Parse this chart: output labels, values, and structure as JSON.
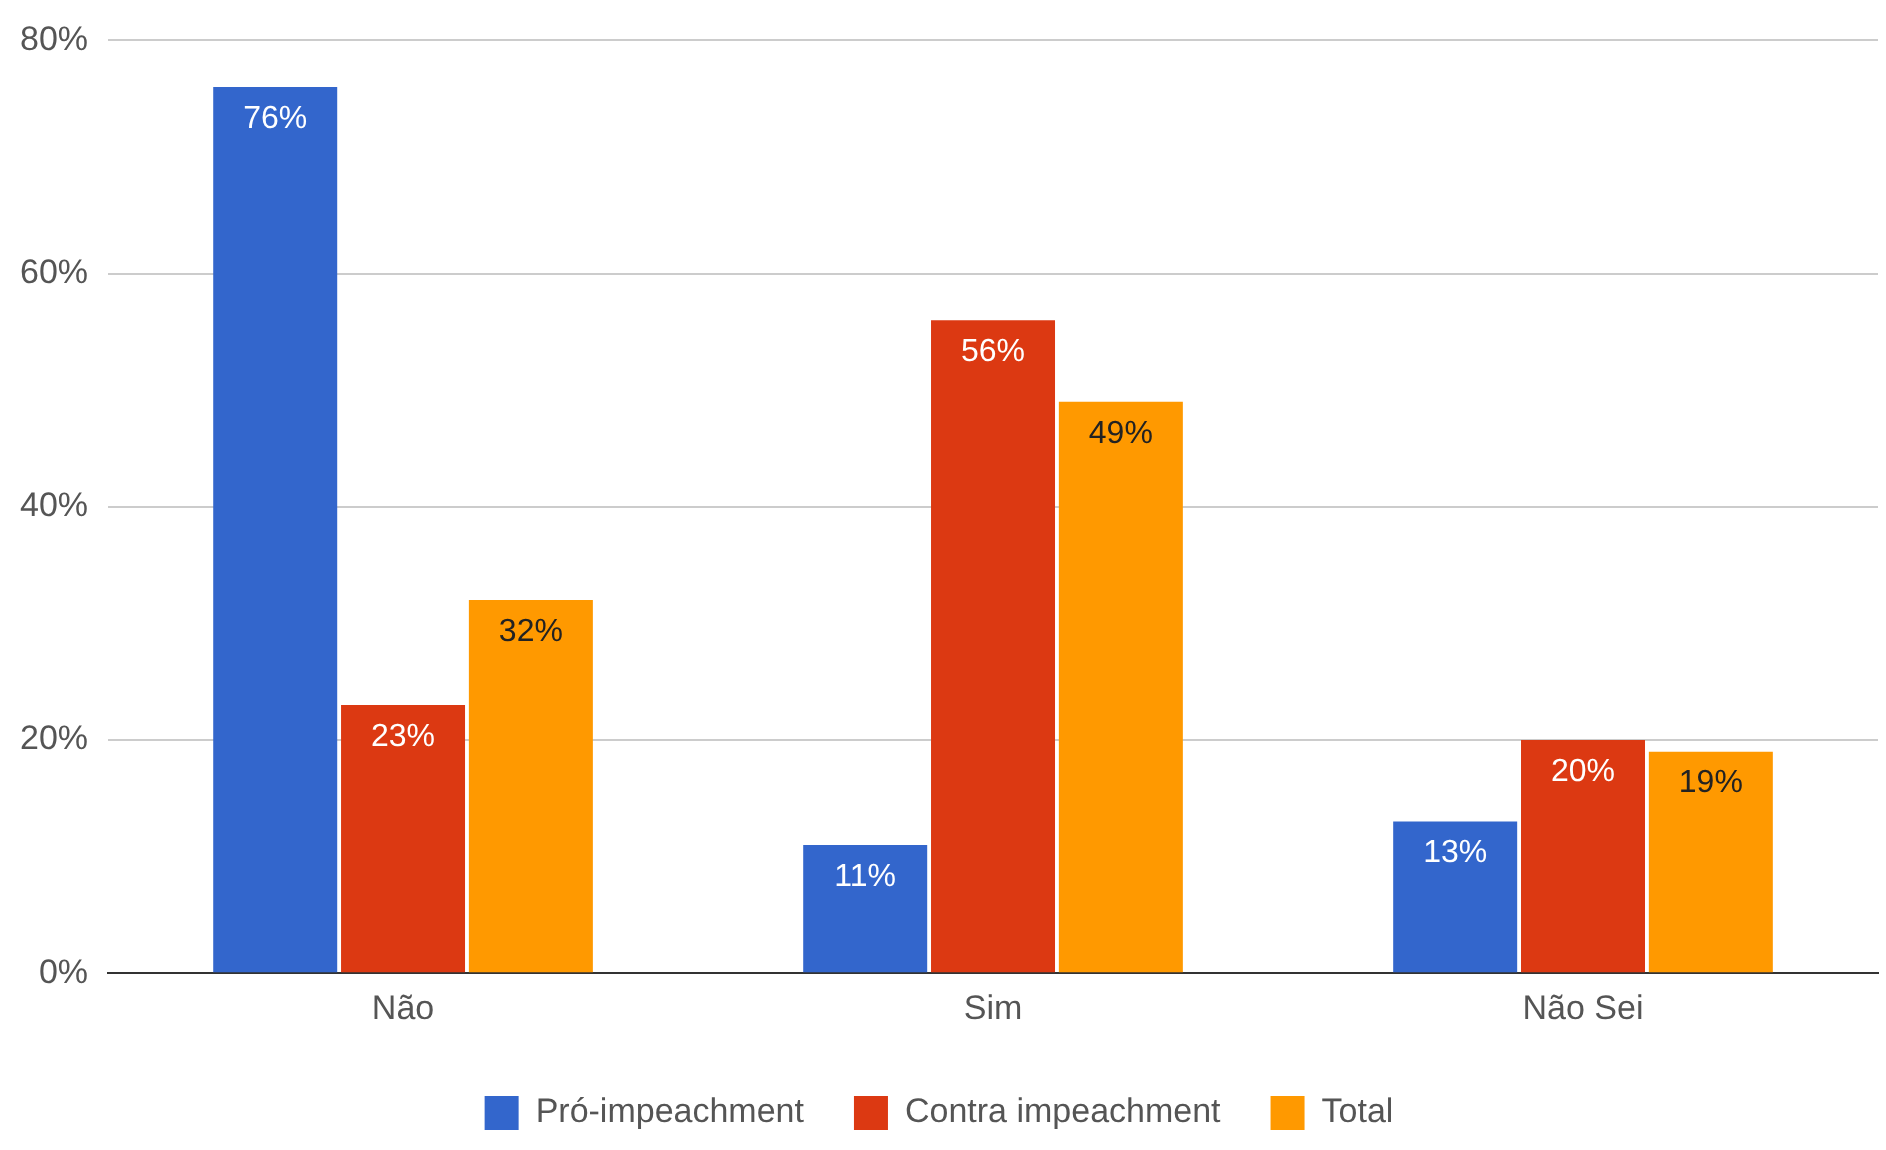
{
  "chart_data": {
    "type": "bar",
    "categories": [
      "Não",
      "Sim",
      "Não Sei"
    ],
    "series": [
      {
        "name": "Pró-impeachment",
        "color": "#3366cc",
        "values": [
          76,
          11,
          13
        ],
        "value_labels": [
          "76%",
          "11%",
          "13%"
        ]
      },
      {
        "name": "Contra impeachment",
        "color": "#dc3912",
        "values": [
          23,
          56,
          20
        ],
        "value_labels": [
          "23%",
          "56%",
          "20%"
        ]
      },
      {
        "name": "Total",
        "color": "#ff9900",
        "values": [
          32,
          49,
          19
        ],
        "value_labels": [
          "32%",
          "49%",
          "19%"
        ]
      }
    ],
    "ylim": [
      0,
      80
    ],
    "yticks": [
      {
        "value": 0,
        "label": "0%"
      },
      {
        "value": 20,
        "label": "20%"
      },
      {
        "value": 40,
        "label": "40%"
      },
      {
        "value": 60,
        "label": "60%"
      },
      {
        "value": 80,
        "label": "80%"
      }
    ],
    "grid": "y",
    "legend": "bottom"
  }
}
